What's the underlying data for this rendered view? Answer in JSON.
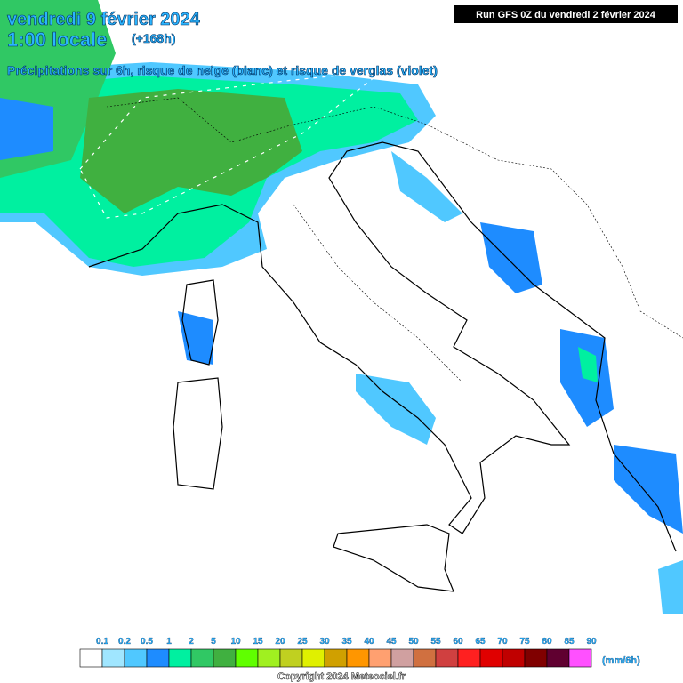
{
  "header": {
    "date": "vendredi 9 février 2024",
    "time": "1:00 locale",
    "lead": "(+168h)",
    "subtitle": "Précipitations sur 6h, risque de neige (blanc) et risque de verglas (violet)",
    "run": "Run GFS 0Z du vendredi 2 février 2024"
  },
  "legend": {
    "labels": [
      "0.1",
      "0.2",
      "0.5",
      "1",
      "2",
      "5",
      "10",
      "15",
      "20",
      "25",
      "30",
      "35",
      "40",
      "45",
      "50",
      "55",
      "60",
      "65",
      "70",
      "75",
      "80",
      "85",
      "90"
    ],
    "colors": [
      "#ffffff",
      "#a0e6ff",
      "#50c8ff",
      "#1e8cff",
      "#00f0a0",
      "#30c864",
      "#40b040",
      "#60ff00",
      "#a0f020",
      "#c0d020",
      "#e0f000",
      "#d0a000",
      "#ff9600",
      "#ffa070",
      "#d0a0a0",
      "#d07040",
      "#d04040",
      "#ff2020",
      "#e00000",
      "#c00000",
      "#800000",
      "#600030",
      "#ff50ff"
    ],
    "unit": "(mm/6h)"
  },
  "footer": {
    "copyright": "Copyright 2024 Meteociel.fr"
  }
}
